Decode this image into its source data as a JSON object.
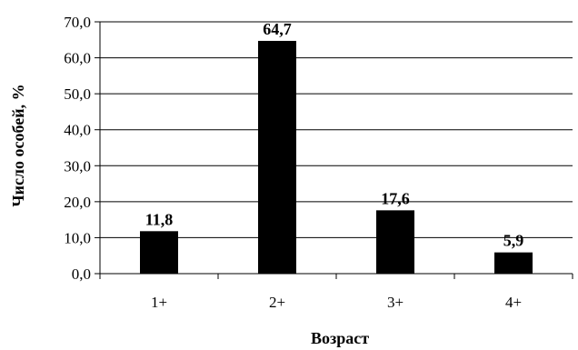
{
  "chart_data": {
    "type": "bar",
    "categories": [
      "1+",
      "2+",
      "3+",
      "4+"
    ],
    "values": [
      11.8,
      64.7,
      17.6,
      5.9
    ],
    "data_labels": [
      "11,8",
      "64,7",
      "17,6",
      "5,9"
    ],
    "y_ticks": [
      0,
      10,
      20,
      30,
      40,
      50,
      60,
      70
    ],
    "y_tick_labels": [
      "0,0",
      "10,0",
      "20,0",
      "30,0",
      "40,0",
      "50,0",
      "60,0",
      "70,0"
    ],
    "ylim": [
      0,
      70
    ],
    "xlabel": "Возраст",
    "ylabel": "Число особей, %",
    "grid": "horizontal",
    "legend": "none",
    "colors": {
      "bar": "#000000",
      "grid": "#000000",
      "axis": "#000000",
      "background": "#ffffff"
    }
  }
}
